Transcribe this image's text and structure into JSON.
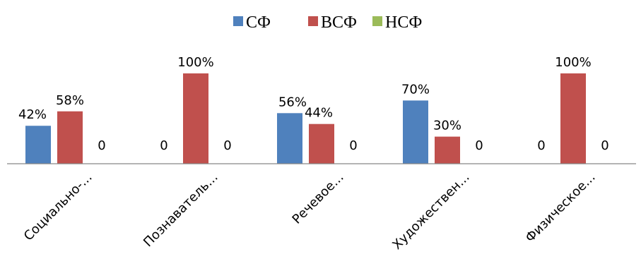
{
  "chart_data": {
    "type": "bar",
    "categories": [
      "Социально-...",
      "Познаватель...",
      "Речевое...",
      "Художествен...",
      "Физическое..."
    ],
    "series": [
      {
        "name": "СФ",
        "color": "#4F81BD",
        "values": [
          42,
          0,
          56,
          70,
          0
        ],
        "labels": [
          "42%",
          "0",
          "56%",
          "70%",
          "0"
        ]
      },
      {
        "name": "ВСФ",
        "color": "#C0504D",
        "values": [
          58,
          100,
          44,
          30,
          100
        ],
        "labels": [
          "58%",
          "100%",
          "44%",
          "30%",
          "100%"
        ]
      },
      {
        "name": "НСФ",
        "color": "#9BBB59",
        "values": [
          0,
          0,
          0,
          0,
          0
        ],
        "labels": [
          "0",
          "0",
          "0",
          "0",
          "0"
        ]
      }
    ],
    "ylim": [
      0,
      100
    ],
    "grid": false,
    "legend_position": "top-center",
    "title": "",
    "xlabel": "",
    "ylabel": ""
  }
}
